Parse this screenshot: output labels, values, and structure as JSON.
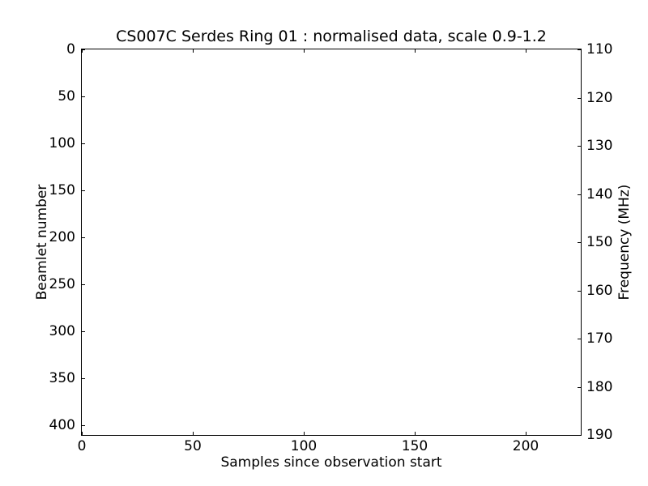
{
  "chart_data": {
    "type": "heatmap",
    "title": "CS007C Serdes Ring 01 : normalised data, scale 0.9-1.2",
    "xlabel": "Samples since observation start",
    "ylabel_left": "Beamlet number",
    "ylabel_right": "Frequency (MHz)",
    "xlim": [
      0,
      225
    ],
    "ylim_left": [
      0,
      410
    ],
    "ylim_right": [
      110,
      190
    ],
    "y_axis_inverted_left": true,
    "xticks": [
      0,
      50,
      100,
      150,
      200
    ],
    "yticks_left": [
      0,
      50,
      100,
      150,
      200,
      250,
      300,
      350,
      400
    ],
    "yticks_right": [
      110,
      120,
      130,
      140,
      150,
      160,
      170,
      180,
      190
    ],
    "grid": false,
    "legend": "none",
    "tick_direction": "in",
    "frame_color": "#000000",
    "text_color": "#000000",
    "plot_background": "#ffffff",
    "figure_background": "#ffffff",
    "series": [],
    "note_visible_content": "plot interior is uniformly white; no data pixels rendered"
  }
}
